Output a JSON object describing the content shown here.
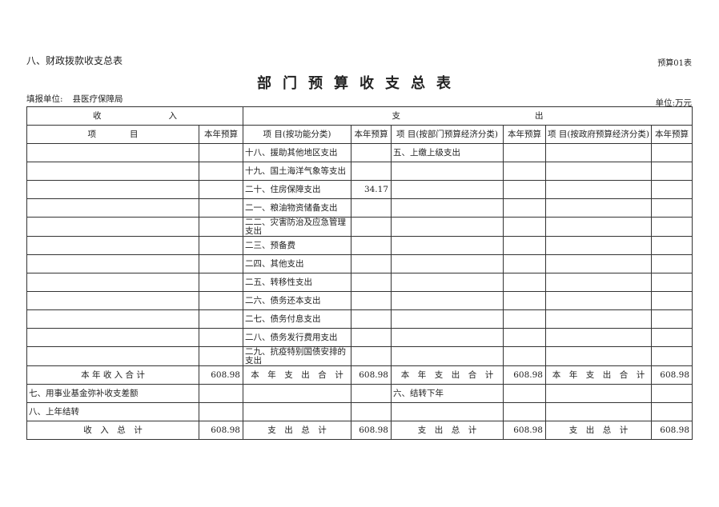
{
  "header": {
    "section": "八、财政拨款收支总表",
    "form_no": "预算01表",
    "title": "部门预算收支总表",
    "unit_label": "填报单位:",
    "unit_name": "县医疗保障局",
    "money_unit": "单位:万元"
  },
  "table": {
    "group_income": "收　　　　　　　　入",
    "group_expense": "支　　　　　　　　　　　　　　　　出",
    "columns": [
      "项　　　　目",
      "本年预算",
      "项 目(按功能分类)",
      "本年预算",
      "项 目(按部门预算经济分类)",
      "本年预算",
      "项 目(按政府预算经济分类)",
      "本年预算"
    ],
    "rows": [
      [
        "",
        "",
        "十八、援助其他地区支出",
        "",
        "五、上缴上级支出",
        "",
        "",
        ""
      ],
      [
        "",
        "",
        "十九、国土海洋气象等支出",
        "",
        "",
        "",
        "",
        ""
      ],
      [
        "",
        "",
        "二十、住房保障支出",
        "34.17",
        "",
        "",
        "",
        ""
      ],
      [
        "",
        "",
        "二一、粮油物资储备支出",
        "",
        "",
        "",
        "",
        ""
      ],
      [
        "",
        "",
        "二二、灾害防治及应急管理支出",
        "",
        "",
        "",
        "",
        ""
      ],
      [
        "",
        "",
        "二三、预备费",
        "",
        "",
        "",
        "",
        ""
      ],
      [
        "",
        "",
        "二四、其他支出",
        "",
        "",
        "",
        "",
        ""
      ],
      [
        "",
        "",
        "二五、转移性支出",
        "",
        "",
        "",
        "",
        ""
      ],
      [
        "",
        "",
        "二六、债务还本支出",
        "",
        "",
        "",
        "",
        ""
      ],
      [
        "",
        "",
        "二七、债务付息支出",
        "",
        "",
        "",
        "",
        ""
      ],
      [
        "",
        "",
        "二八、债务发行费用支出",
        "",
        "",
        "",
        "",
        ""
      ],
      [
        "",
        "",
        "二九、抗疫特别国债安排的支出",
        "",
        "",
        "",
        "",
        ""
      ]
    ],
    "subtotal_row": [
      "本 年 收 入 合 计",
      "608.98",
      "本　年　支　出　合　计",
      "608.98",
      "本　年　支　出　合　计",
      "608.98",
      "本　年　支　出　合　计",
      "608.98"
    ],
    "extra_rows": [
      [
        "七、用事业基金弥补收支差额",
        "",
        "",
        "",
        "六、结转下年",
        "",
        "",
        ""
      ],
      [
        "八、上年结转",
        "",
        "",
        "",
        "",
        "",
        "",
        ""
      ]
    ],
    "total_row": [
      "收　入　总　计",
      "608.98",
      "支　出　总　计",
      "608.98",
      "支　出　总　计",
      "608.98",
      "支　出　总　计",
      "608.98"
    ]
  }
}
